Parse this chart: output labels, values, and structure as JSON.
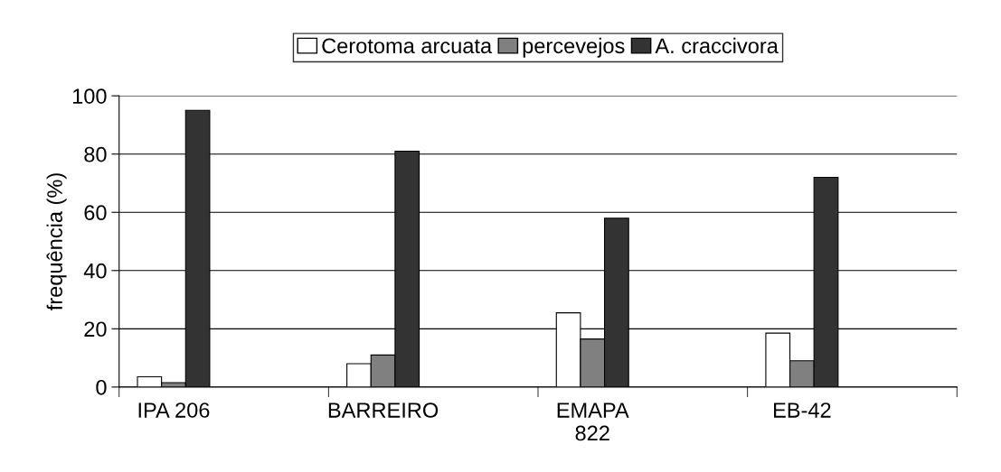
{
  "chart_data": {
    "type": "bar",
    "categories": [
      "IPA 206",
      "BARREIRO",
      "EMAPA 822",
      "EB-42"
    ],
    "series": [
      {
        "name": "Cerotoma arcuata",
        "color": "#ffffff",
        "values": [
          3.5,
          8,
          25.5,
          18.5
        ]
      },
      {
        "name": "percevejos",
        "color": "#808080",
        "values": [
          1.5,
          11,
          16.5,
          9
        ]
      },
      {
        "name": "A. craccivora",
        "color": "#333333",
        "values": [
          95,
          81,
          58,
          72
        ]
      }
    ],
    "ylabel": "frequência (%)",
    "ylim": [
      0,
      100
    ],
    "yticks": [
      0,
      20,
      40,
      60,
      80,
      100
    ],
    "grid": "y",
    "legend": "top"
  }
}
